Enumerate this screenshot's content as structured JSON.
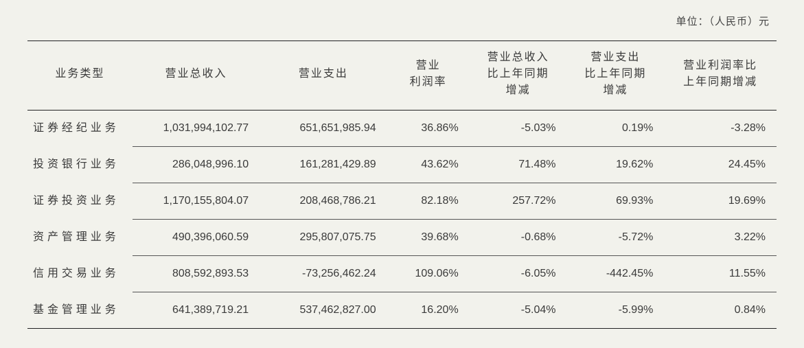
{
  "unit_label": "单位：（人民币）元",
  "table": {
    "background_color": "#f2f2ec",
    "text_color": "#3a3a3a",
    "border_color": "#222222",
    "inner_line_color": "#555555",
    "font_size_pt": 12,
    "columns": [
      {
        "key": "type",
        "label": "业务类型",
        "align": "justify"
      },
      {
        "key": "revenue",
        "label": "营业总收入",
        "align": "right"
      },
      {
        "key": "expense",
        "label": "营业支出",
        "align": "right"
      },
      {
        "key": "margin",
        "label": "营业\n利润率",
        "align": "right"
      },
      {
        "key": "rev_yoy",
        "label": "营业总收入\n比上年同期\n增减",
        "align": "right"
      },
      {
        "key": "exp_yoy",
        "label": "营业支出\n比上年同期\n增减",
        "align": "right"
      },
      {
        "key": "margin_yoy",
        "label": "营业利润率比\n上年同期增减",
        "align": "right"
      }
    ],
    "rows": [
      {
        "type": "证券经纪业务",
        "revenue": "1,031,994,102.77",
        "expense": "651,651,985.94",
        "margin": "36.86%",
        "rev_yoy": "-5.03%",
        "exp_yoy": "0.19%",
        "margin_yoy": "-3.28%"
      },
      {
        "type": "投资银行业务",
        "revenue": "286,048,996.10",
        "expense": "161,281,429.89",
        "margin": "43.62%",
        "rev_yoy": "71.48%",
        "exp_yoy": "19.62%",
        "margin_yoy": "24.45%"
      },
      {
        "type": "证券投资业务",
        "revenue": "1,170,155,804.07",
        "expense": "208,468,786.21",
        "margin": "82.18%",
        "rev_yoy": "257.72%",
        "exp_yoy": "69.93%",
        "margin_yoy": "19.69%"
      },
      {
        "type": "资产管理业务",
        "revenue": "490,396,060.59",
        "expense": "295,807,075.75",
        "margin": "39.68%",
        "rev_yoy": "-0.68%",
        "exp_yoy": "-5.72%",
        "margin_yoy": "3.22%"
      },
      {
        "type": "信用交易业务",
        "revenue": "808,592,893.53",
        "expense": "-73,256,462.24",
        "margin": "109.06%",
        "rev_yoy": "-6.05%",
        "exp_yoy": "-442.45%",
        "margin_yoy": "11.55%"
      },
      {
        "type": "基金管理业务",
        "revenue": "641,389,719.21",
        "expense": "537,462,827.00",
        "margin": "16.20%",
        "rev_yoy": "-5.04%",
        "exp_yoy": "-5.99%",
        "margin_yoy": "0.84%"
      }
    ]
  }
}
